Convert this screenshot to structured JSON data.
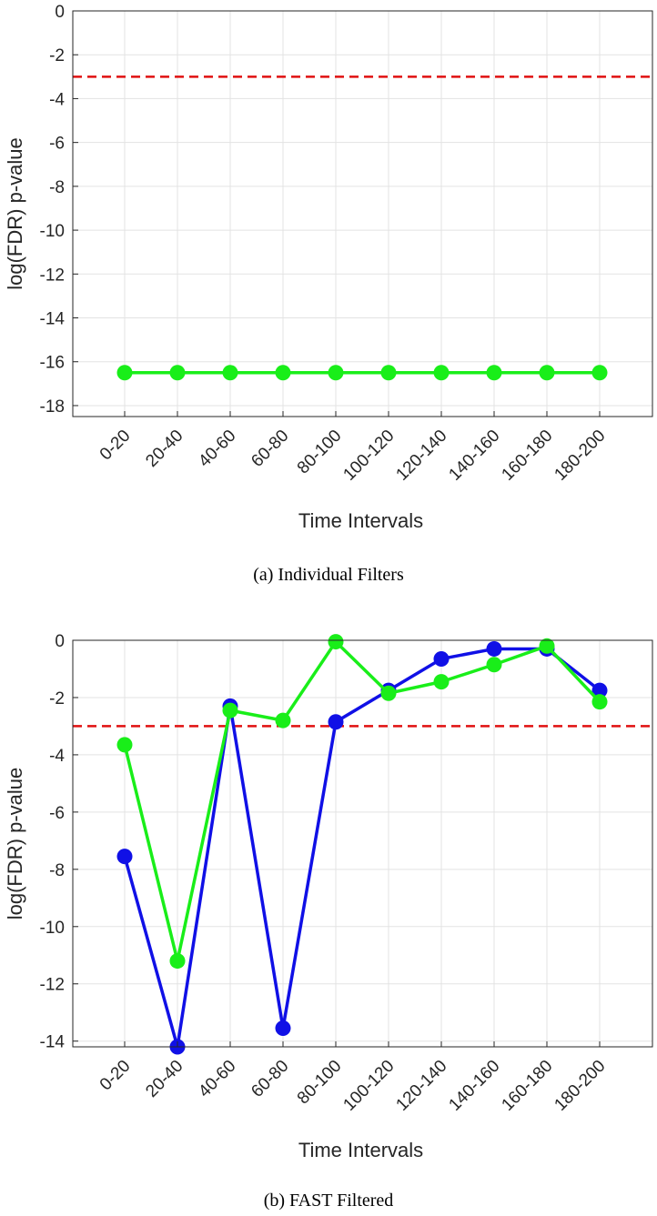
{
  "colors": {
    "green": "#19ee19",
    "blue": "#1010e6",
    "threshold": "#e01010",
    "grid": "#e3e3e3",
    "axis": "#262626"
  },
  "chart_data": [
    {
      "type": "line",
      "caption": "(a) Individual Filters",
      "xlabel": "Time Intervals",
      "ylabel": "log(FDR) p-value",
      "categories": [
        "0-20",
        "20-40",
        "40-60",
        "60-80",
        "80-100",
        "100-120",
        "120-140",
        "140-160",
        "160-180",
        "180-200"
      ],
      "ylim": [
        -18.5,
        0
      ],
      "yticks": [
        0,
        -2,
        -4,
        -6,
        -8,
        -10,
        -12,
        -14,
        -16,
        -18
      ],
      "ytick_labels": [
        "0",
        "-2",
        "-4",
        "-6",
        "-8",
        "-10",
        "-12",
        "-14",
        "-16",
        "-18"
      ],
      "threshold": -3,
      "grid": true,
      "series": [
        {
          "name": "green",
          "color": "#19ee19",
          "values": [
            -16.5,
            -16.5,
            -16.5,
            -16.5,
            -16.5,
            -16.5,
            -16.5,
            -16.5,
            -16.5,
            -16.5
          ]
        }
      ]
    },
    {
      "type": "line",
      "caption": "(b) FAST Filtered",
      "xlabel": "Time Intervals",
      "ylabel": "log(FDR) p-value",
      "categories": [
        "0-20",
        "20-40",
        "40-60",
        "60-80",
        "80-100",
        "100-120",
        "120-140",
        "140-160",
        "160-180",
        "180-200"
      ],
      "ylim": [
        -14.2,
        0
      ],
      "yticks": [
        0,
        -2,
        -4,
        -6,
        -8,
        -10,
        -12,
        -14
      ],
      "ytick_labels": [
        "0",
        "-2",
        "-4",
        "-6",
        "-8",
        "-10",
        "-12",
        "-14"
      ],
      "threshold": -3,
      "grid": true,
      "series": [
        {
          "name": "blue",
          "color": "#1010e6",
          "values": [
            -7.55,
            -14.2,
            -2.3,
            -13.55,
            -2.85,
            -1.75,
            -0.65,
            -0.3,
            -0.3,
            -1.75
          ]
        },
        {
          "name": "green",
          "color": "#19ee19",
          "values": [
            -3.65,
            -11.2,
            -2.45,
            -2.8,
            -0.05,
            -1.85,
            -1.45,
            -0.85,
            -0.2,
            -2.15
          ]
        }
      ]
    }
  ]
}
